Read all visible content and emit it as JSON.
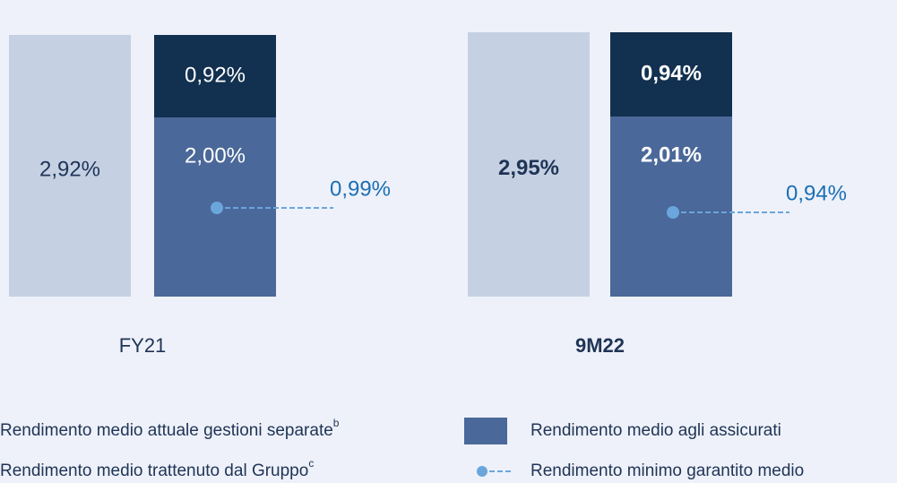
{
  "chart_data": {
    "type": "bar",
    "categories": [
      "FY21",
      "9M22"
    ],
    "highlight_index": 1,
    "series": [
      {
        "name": "Rendimento medio attuale gestioni separate",
        "note": "b",
        "color": "#c5d1e3",
        "values": [
          2.92,
          2.95
        ],
        "value_labels": [
          "2,92%",
          "2,95%"
        ]
      },
      {
        "name": "Rendimento medio agli assicurati",
        "color": "#4a6899",
        "values": [
          2.0,
          2.01
        ],
        "value_labels": [
          "2,00%",
          "2,01%"
        ]
      },
      {
        "name": "Rendimento medio trattenuto dal  Gruppo",
        "note": "c",
        "color": "#12304f",
        "stacked_on": 1,
        "values": [
          0.92,
          0.94
        ],
        "value_labels": [
          "0,92%",
          "0,94%"
        ]
      },
      {
        "name": "Rendimento minimo garantito medio",
        "kind": "marker",
        "color": "#6aa6dc",
        "values": [
          0.99,
          0.94
        ],
        "value_labels": [
          "0,99%",
          "0,94%"
        ]
      }
    ]
  }
}
